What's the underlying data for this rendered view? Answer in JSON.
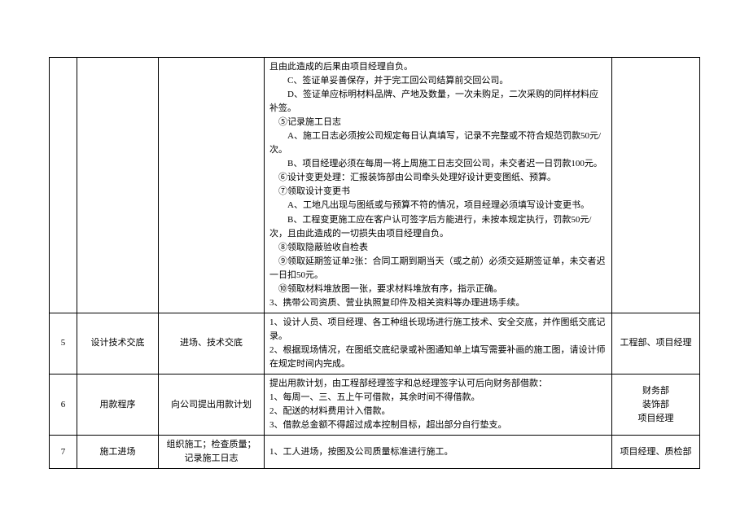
{
  "rows": [
    {
      "idx": "",
      "name": "",
      "task": "",
      "owner": "",
      "details": [
        "且由此造成的后果由项目经理自负。",
        "　　C、签证单妥善保存，并于完工回公司结算前交回公司。",
        "　　D、签证单应标明材料品牌、产地及数量，一次未购足，二次采购的同样材料应补签。",
        "　⑤记录施工日志",
        "　　A、施工日志必须按公司规定每日认真填写，记录不完整或不符合规范罚款50元/次。",
        "　　B、项目经理必须在每周一将上周施工日志交回公司，未交者迟一日罚款100元。",
        "　⑥设计变更处理：汇报装饰部由公司牵头处理好设计更变图纸、预算。",
        "　⑦领取设计变更书",
        "　　A、工地凡出现与图纸或与预算不符的情况，项目经理必须填写设计变更书。",
        "　　B、工程变更施工应在客户认可签字后方能进行，未按本规定执行，罚款50元/次，且由此造成的一切损失由项目经理自负。",
        "　⑧领取隐蔽验收自检表",
        "　⑨领取延期签证单2张：合同工期到期当天（或之前）必须交延期签证单，未交者迟一日扣50元。",
        "　⑩领取材料堆放图一张，要求材料堆放有序，指示正确。",
        "3、携带公司资质、营业执照复印件及相关资料等办理进场手续。"
      ]
    },
    {
      "idx": "5",
      "name": "设计技术交底",
      "task": "进场、技术交底",
      "owner": "工程部、项目经理",
      "details": [
        "1、设计人员、项目经理、各工种组长现场进行施工技术、安全交底，并作图纸交底记录。",
        "2、根据现场情况，在图纸交底纪录或补图通知单上填写需要补画的施工图，请设计师在规定时间内完成。"
      ]
    },
    {
      "idx": "6",
      "name": "用款程序",
      "task": "向公司提出用款计划",
      "owner": "财务部\n装饰部\n项目经理",
      "details": [
        "提出用款计划，由工程部经理签字和总经理签字认可后向财务部借款：",
        "1、每周一、三、五上午可借款，其余时间不得借款。",
        "2、配送的材料费用计入借款。",
        "3、借款总金额不得超过成本控制目标，超出部分自行垫支。"
      ]
    },
    {
      "idx": "7",
      "name": "施工进场",
      "task": "组织施工；检查质量；记录施工日志",
      "owner": "项目经理、质检部",
      "details": [
        "1、工人进场，按图及公司质量标准进行施工。"
      ]
    }
  ]
}
